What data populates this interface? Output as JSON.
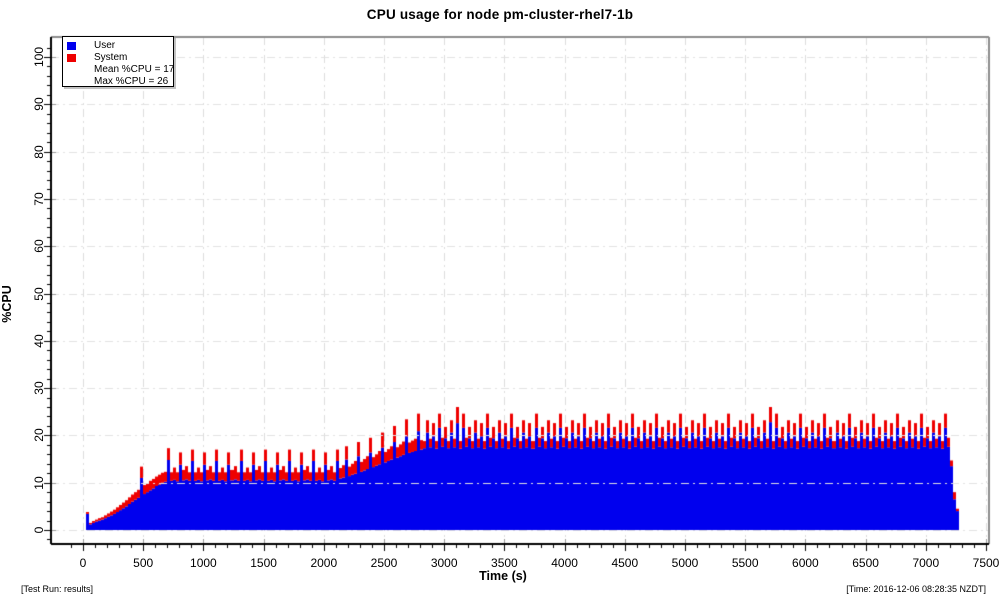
{
  "footer": {
    "left": "[Test Run: results]",
    "right": "[Time: 2016-12-06 08:28:35 NZDT]"
  },
  "chart_data": {
    "type": "area",
    "stacked": true,
    "title": "CPU usage for node pm-cluster-rhel7-1b",
    "xlabel": "Time (s)",
    "ylabel": "%CPU",
    "xlim": [
      -175,
      7525
    ],
    "ylim": [
      -2.75,
      104
    ],
    "grid": true,
    "grid_color": "#dcdcdc",
    "legend_position": "top-left",
    "annotations": [
      "Mean %CPU = 17",
      "Max %CPU = 26"
    ],
    "mean_pct_cpu": 17,
    "max_pct_cpu": 26,
    "x_ticks": [
      0,
      500,
      1000,
      1500,
      2000,
      2500,
      3000,
      3500,
      4000,
      4500,
      5000,
      5500,
      6000,
      6500,
      7000,
      7500
    ],
    "y_ticks": [
      0,
      10,
      20,
      30,
      40,
      50,
      60,
      70,
      80,
      90,
      100
    ],
    "x_minor_step": 100,
    "y_minor_step": 2,
    "x_start": 0,
    "x_step": 25,
    "x_unit": "s",
    "series": [
      {
        "name": "User",
        "color": "#0000ee",
        "values": [
          0,
          3.4,
          1.2,
          1.5,
          1.8,
          2.0,
          2.2,
          2.5,
          2.8,
          3.1,
          3.4,
          3.8,
          4.2,
          4.6,
          5.0,
          5.5,
          6.0,
          6.4,
          6.8,
          11.0,
          7.6,
          8.0,
          8.4,
          8.8,
          9.3,
          9.6,
          10.0,
          10.2,
          14.8,
          10.4,
          10.6,
          10.3,
          13.8,
          10.5,
          10.7,
          10.4,
          14.6,
          10.4,
          10.6,
          10.3,
          13.8,
          10.5,
          10.7,
          10.4,
          14.6,
          10.4,
          10.6,
          10.3,
          13.8,
          10.5,
          10.7,
          10.4,
          14.6,
          10.4,
          10.6,
          10.3,
          13.8,
          10.5,
          10.7,
          10.4,
          14.6,
          10.4,
          10.6,
          10.3,
          13.8,
          10.5,
          10.7,
          10.4,
          14.6,
          10.4,
          10.6,
          10.3,
          13.8,
          10.5,
          10.7,
          10.4,
          14.6,
          10.4,
          10.6,
          10.3,
          13.8,
          10.5,
          10.7,
          10.4,
          14.6,
          10.9,
          11.1,
          14.9,
          11.4,
          11.7,
          11.9,
          15.6,
          12.3,
          12.6,
          12.9,
          16.4,
          13.3,
          13.6,
          13.9,
          17.4,
          14.3,
          14.6,
          14.9,
          18.6,
          15.3,
          15.6,
          15.9,
          19.8,
          16.3,
          16.5,
          16.7,
          20.9,
          17.0,
          17.3,
          20.6,
          17.5,
          19.8,
          17.2,
          21.6,
          17.6,
          19.4,
          17.3,
          20.6,
          17.5,
          22.6,
          17.2,
          21.6,
          17.6,
          19.4,
          17.3,
          20.6,
          17.5,
          19.8,
          17.2,
          21.6,
          17.6,
          19.4,
          17.3,
          20.6,
          17.5,
          19.8,
          17.2,
          21.6,
          17.6,
          19.4,
          17.3,
          20.6,
          17.5,
          19.8,
          17.2,
          21.6,
          17.6,
          19.4,
          17.3,
          20.6,
          17.5,
          19.8,
          17.2,
          21.6,
          17.6,
          19.4,
          17.3,
          20.6,
          17.5,
          19.8,
          17.2,
          21.6,
          17.6,
          19.4,
          17.3,
          20.6,
          17.5,
          19.8,
          17.2,
          21.6,
          17.6,
          19.4,
          17.3,
          20.6,
          17.5,
          19.8,
          17.2,
          21.6,
          17.6,
          19.4,
          17.3,
          20.6,
          17.5,
          19.8,
          17.2,
          21.6,
          17.6,
          19.4,
          17.3,
          20.6,
          17.5,
          19.8,
          17.2,
          21.6,
          17.6,
          19.4,
          17.3,
          20.6,
          17.5,
          19.8,
          17.2,
          21.6,
          17.6,
          19.4,
          17.3,
          20.6,
          17.5,
          19.8,
          17.2,
          21.6,
          17.6,
          19.4,
          17.3,
          20.6,
          17.5,
          19.8,
          17.2,
          21.6,
          17.6,
          19.4,
          17.3,
          20.6,
          17.5,
          22.8,
          17.2,
          21.6,
          17.6,
          19.4,
          17.3,
          20.6,
          17.5,
          19.8,
          17.2,
          21.6,
          17.6,
          19.4,
          17.3,
          20.6,
          17.5,
          19.8,
          17.2,
          21.6,
          17.6,
          19.4,
          17.3,
          20.6,
          17.5,
          19.8,
          17.2,
          21.6,
          17.6,
          19.4,
          17.3,
          20.6,
          17.5,
          19.8,
          17.2,
          21.6,
          17.6,
          19.4,
          17.3,
          20.6,
          17.5,
          19.8,
          17.2,
          21.6,
          17.6,
          19.4,
          17.3,
          20.6,
          17.5,
          19.8,
          17.2,
          21.6,
          17.6,
          19.4,
          17.3,
          20.6,
          17.5,
          19.8,
          17.2,
          21.6,
          17.6,
          13.5,
          6.5,
          4.0
        ]
      },
      {
        "name": "System",
        "color": "#ee0000",
        "values": [
          0,
          0.4,
          0.3,
          0.4,
          0.4,
          0.5,
          0.5,
          0.6,
          0.7,
          0.8,
          0.9,
          1.0,
          1.1,
          1.2,
          1.3,
          1.4,
          1.5,
          1.6,
          1.7,
          2.4,
          1.9,
          1.9,
          2.0,
          2.0,
          2.0,
          2.1,
          2.1,
          2.1,
          2.5,
          1.8,
          2.6,
          1.9,
          2.6,
          2.2,
          2.8,
          1.8,
          2.4,
          1.8,
          2.6,
          1.9,
          2.6,
          2.2,
          2.8,
          1.8,
          2.4,
          1.8,
          2.6,
          1.9,
          2.6,
          2.2,
          2.8,
          1.8,
          2.4,
          1.8,
          2.6,
          1.9,
          2.6,
          2.2,
          2.8,
          1.8,
          2.4,
          1.8,
          2.6,
          1.9,
          2.6,
          2.2,
          2.8,
          1.8,
          2.4,
          1.8,
          2.6,
          1.9,
          2.6,
          2.2,
          2.8,
          1.8,
          2.4,
          1.8,
          2.6,
          1.9,
          2.6,
          2.2,
          2.8,
          1.8,
          2.4,
          2.2,
          2.6,
          2.8,
          2.0,
          2.3,
          2.7,
          3.0,
          2.1,
          2.4,
          2.7,
          3.1,
          2.1,
          2.4,
          2.8,
          3.2,
          2.2,
          2.5,
          2.8,
          3.4,
          2.2,
          2.5,
          2.8,
          3.6,
          2.2,
          2.4,
          2.6,
          3.7,
          2.0,
          1.5,
          2.6,
          1.8,
          2.8,
          1.6,
          3.0,
          1.9,
          2.4,
          1.5,
          2.6,
          1.8,
          3.4,
          1.6,
          3.0,
          1.9,
          2.4,
          1.5,
          2.6,
          1.8,
          2.8,
          1.6,
          3.0,
          1.9,
          2.4,
          1.5,
          2.6,
          1.8,
          2.8,
          1.6,
          3.0,
          1.9,
          2.4,
          1.5,
          2.6,
          1.8,
          2.8,
          1.6,
          3.0,
          1.9,
          2.4,
          1.5,
          2.6,
          1.8,
          2.8,
          1.6,
          3.0,
          1.9,
          2.4,
          1.5,
          2.6,
          1.8,
          2.8,
          1.6,
          3.0,
          1.9,
          2.4,
          1.5,
          2.6,
          1.8,
          2.8,
          1.6,
          3.0,
          1.9,
          2.4,
          1.5,
          2.6,
          1.8,
          2.8,
          1.6,
          3.0,
          1.9,
          2.4,
          1.5,
          2.6,
          1.8,
          2.8,
          1.6,
          3.0,
          1.9,
          2.4,
          1.5,
          2.6,
          1.8,
          2.8,
          1.6,
          3.0,
          1.9,
          2.4,
          1.5,
          2.6,
          1.8,
          2.8,
          1.6,
          3.0,
          1.9,
          2.4,
          1.5,
          2.6,
          1.8,
          2.8,
          1.6,
          3.0,
          1.9,
          2.4,
          1.5,
          2.6,
          1.8,
          2.8,
          1.6,
          3.0,
          1.9,
          2.4,
          1.5,
          2.6,
          1.8,
          3.2,
          1.6,
          3.0,
          1.9,
          2.4,
          1.5,
          2.6,
          1.8,
          2.8,
          1.6,
          3.0,
          1.9,
          2.4,
          1.5,
          2.6,
          1.8,
          2.8,
          1.6,
          3.0,
          1.9,
          2.4,
          1.5,
          2.6,
          1.8,
          2.8,
          1.6,
          3.0,
          1.9,
          2.4,
          1.5,
          2.6,
          1.8,
          2.8,
          1.6,
          3.0,
          1.9,
          2.4,
          1.5,
          2.6,
          1.8,
          2.8,
          1.6,
          3.0,
          1.9,
          2.4,
          1.5,
          2.6,
          1.8,
          2.8,
          1.6,
          3.0,
          1.9,
          2.4,
          1.5,
          2.6,
          1.8,
          2.8,
          1.6,
          3.0,
          1.9,
          1.2,
          1.5,
          0.5
        ]
      }
    ]
  }
}
